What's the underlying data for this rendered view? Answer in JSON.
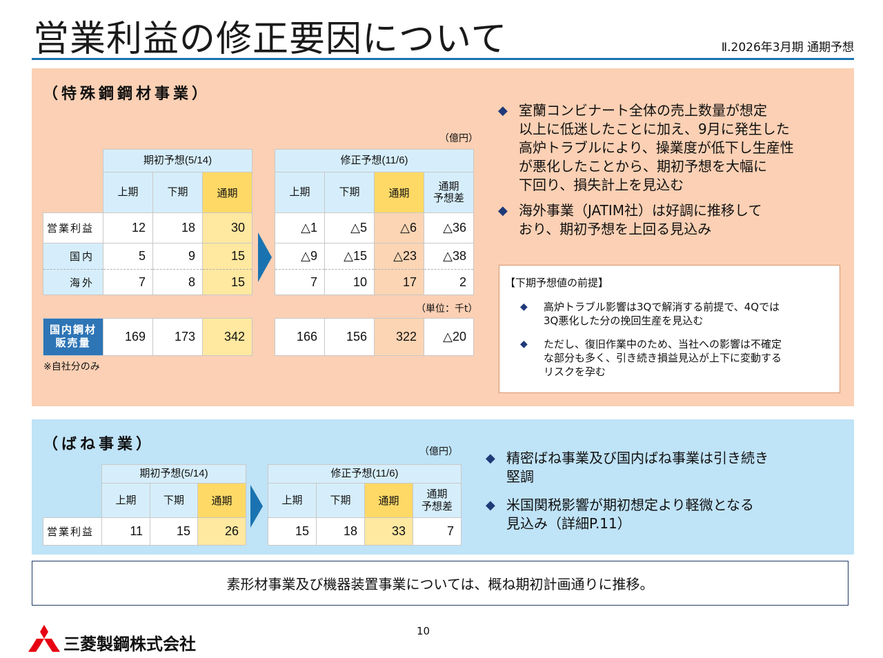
{
  "header": {
    "title": "営業利益の修正要因について",
    "subtitle": "Ⅱ.2026年3月期 通期予想"
  },
  "steel": {
    "heading": "（特殊鋼鋼材事業）",
    "unit_oku": "（億円）",
    "unit_kt": "（単位：千t）",
    "initial_header": "期初予想(5/14)",
    "revised_header": "修正予想(11/6)",
    "col_h1": "上期",
    "col_h2": "下期",
    "col_full": "通期",
    "col_diff": "通期\n予想差",
    "row_op": "営業利益",
    "row_dom": "国内",
    "row_ovs": "海外",
    "row_sales": "国内鋼材\n販売量",
    "note": "※自社分のみ",
    "initial": {
      "op": [
        "12",
        "18",
        "30"
      ],
      "dom": [
        "5",
        "9",
        "15"
      ],
      "ovs": [
        "7",
        "8",
        "15"
      ],
      "sales": [
        "169",
        "173",
        "342"
      ]
    },
    "revised": {
      "op": [
        "△1",
        "△5",
        "△6",
        "△36"
      ],
      "dom": [
        "△9",
        "△15",
        "△23",
        "△38"
      ],
      "ovs": [
        "7",
        "10",
        "17",
        "2"
      ],
      "sales": [
        "166",
        "156",
        "322",
        "△20"
      ]
    },
    "bullets": [
      "室蘭コンビナート全体の売上数量が想定\n以上に低迷したことに加え、9月に発生した\n高炉トラブルにより、操業度が低下し生産性\nが悪化したことから、期初予想を大幅に\n下回り、損失計上を見込む",
      "海外事業（JATIM社）は好調に推移して\nおり、期初予想を上回る見込み"
    ],
    "premise": {
      "title": "【下期予想値の前提】",
      "items": [
        "高炉トラブル影響は3Qで解消する前提で、4Qでは\n3Q悪化した分の挽回生産を見込む",
        "ただし、復旧作業中のため、当社への影響は不確定\nな部分も多く、引き続き損益見込が上下に変動する\nリスクを孕む"
      ]
    }
  },
  "spring": {
    "heading": "（ばね事業）",
    "unit_oku": "（億円）",
    "initial_header": "期初予想(5/14)",
    "revised_header": "修正予想(11/6)",
    "col_h1": "上期",
    "col_h2": "下期",
    "col_full": "通期",
    "col_diff": "通期\n予想差",
    "row_op": "営業利益",
    "initial": {
      "op": [
        "11",
        "15",
        "26"
      ]
    },
    "revised": {
      "op": [
        "15",
        "18",
        "33",
        "7"
      ]
    },
    "bullets": [
      "精密ばね事業及び国内ばね事業は引き続き\n堅調",
      "米国関税影響が期初想定より軽微となる\n見込み（詳細P.11）"
    ]
  },
  "conclusion": "素形材事業及び機器装置事業については、概ね期初計画通りに推移。",
  "footer": {
    "page": "10",
    "company": "三菱製鋼株式会社"
  },
  "colors": {
    "accent_blue": "#1a73b0",
    "orange_panel": "#fbd0b4",
    "blue_panel": "#bfe3f7",
    "header_cell": "#d6eefb",
    "full_year_header": "#ffd966",
    "logo_red": "#e60012"
  }
}
